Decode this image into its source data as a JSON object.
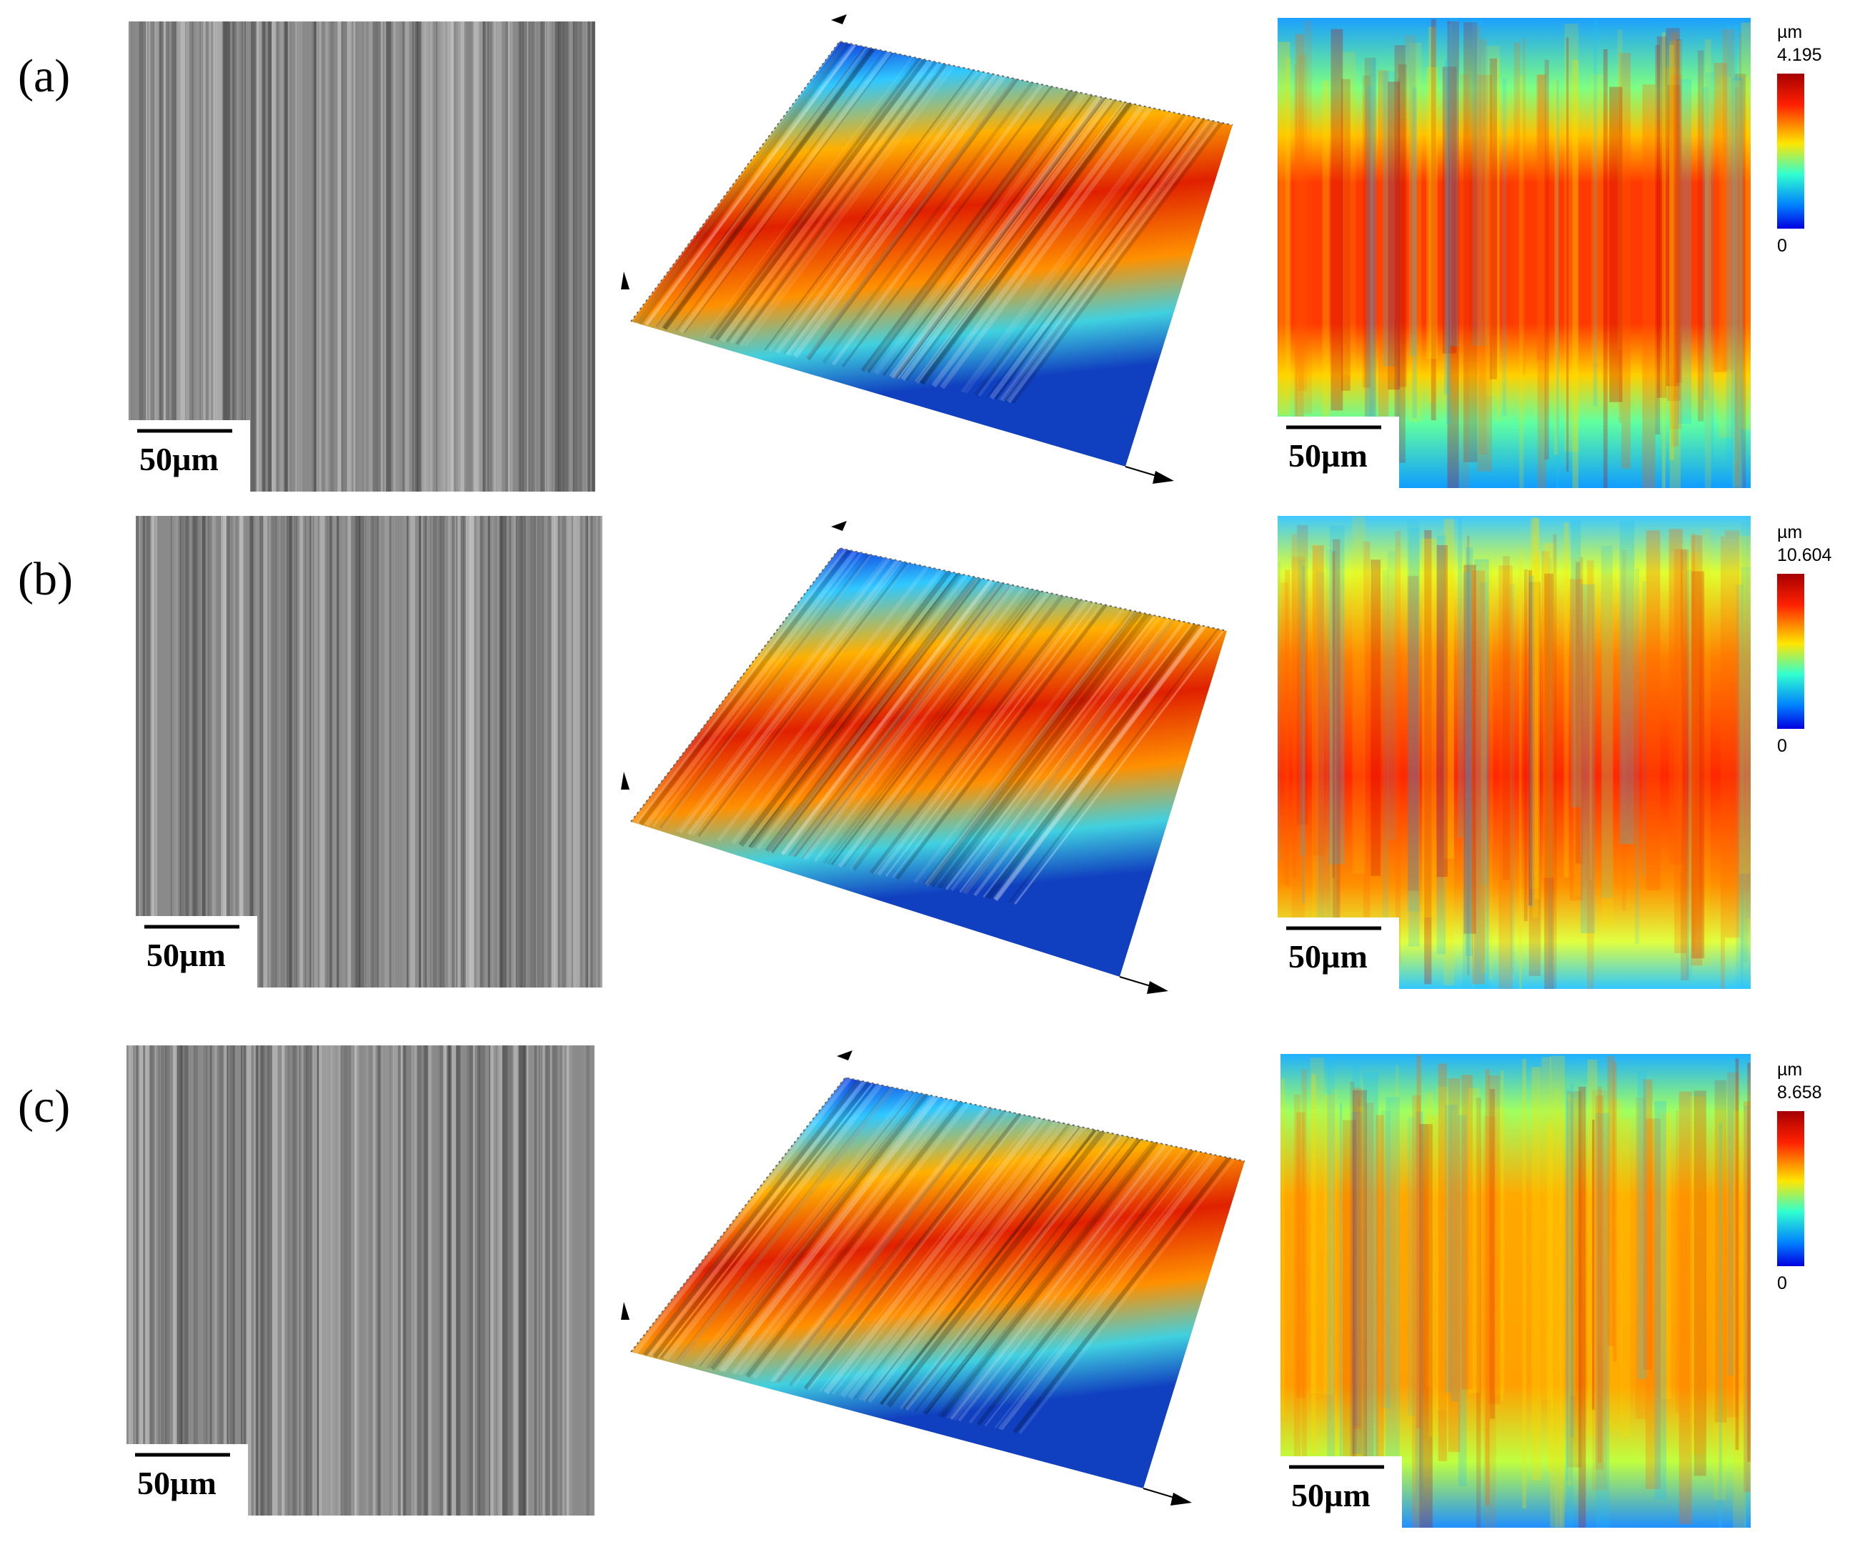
{
  "figure": {
    "rows": [
      {
        "label": "(a)",
        "scale_bar": "50µm",
        "colorbar": {
          "unit": "µm",
          "max": "4.195",
          "min": "0"
        }
      },
      {
        "label": "(b)",
        "scale_bar": "50µm",
        "colorbar": {
          "unit": "µm",
          "max": "10.604",
          "min": "0"
        }
      },
      {
        "label": "(c)",
        "scale_bar": "50µm",
        "colorbar": {
          "unit": "µm",
          "max": "8.658",
          "min": "0"
        }
      }
    ]
  }
}
